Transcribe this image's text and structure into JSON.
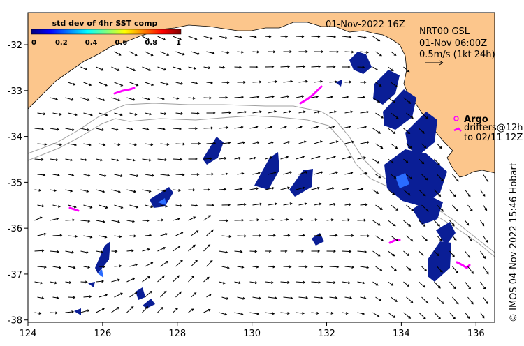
{
  "map": {
    "title": "01-Nov-2022 16Z",
    "product_label": "NRT00 GSL",
    "product_time": "01-Nov 06:00Z",
    "vector_scale_label": "0.5m/s (1kt 24h)",
    "legend": {
      "argo_label": "Argo",
      "drifters_label": "drifters@12h",
      "drifters_range": "to 02/11 12Z"
    },
    "credit": "© IMOS 04-Nov-2022 15:46 Hobart",
    "colorbar": {
      "title": "std dev of 4hr SST comp",
      "ticks": [
        "0",
        "0.2",
        "0.4",
        "0.6",
        "0.8",
        "1"
      ],
      "colors": [
        "#00007f",
        "#0000ff",
        "#007fff",
        "#00ffff",
        "#7fff7f",
        "#ffff00",
        "#ff7f00",
        "#ff0000",
        "#7f0000"
      ]
    },
    "axes": {
      "lon_ticks": [
        "124",
        "126",
        "128",
        "130",
        "132",
        "134",
        "136"
      ],
      "lat_ticks": [
        "-32",
        "-33",
        "-34",
        "-35",
        "-36",
        "-37",
        "-38"
      ],
      "lon_range": [
        124,
        136.5
      ],
      "lat_range": [
        -38.05,
        -31.3
      ]
    },
    "colors": {
      "land": "#fcc68c",
      "sst_patches": "#0a1e96",
      "drifters": "#ff00ff",
      "isobath": "#a0a0a0",
      "vectors": "#000000"
    }
  }
}
